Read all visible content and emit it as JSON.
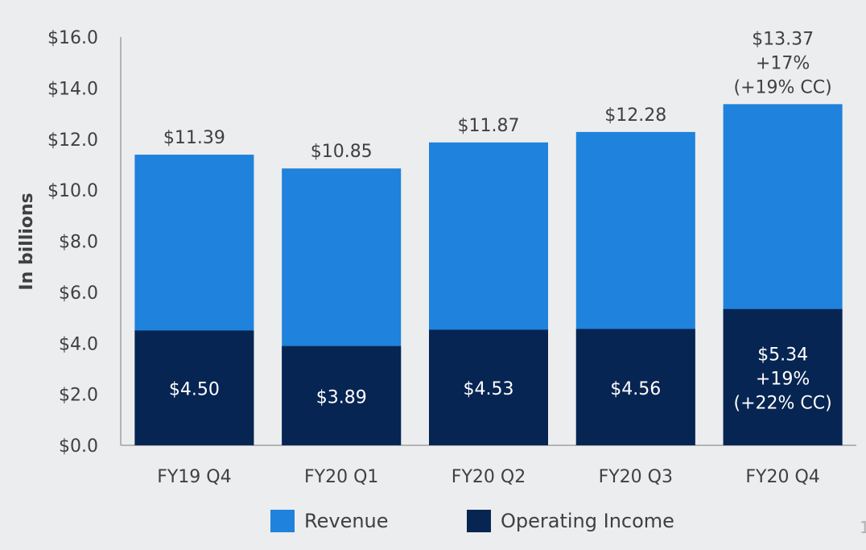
{
  "chart_data": {
    "type": "bar",
    "stacked": "overlay",
    "categories": [
      "FY19 Q4",
      "FY20 Q1",
      "FY20 Q2",
      "FY20 Q3",
      "FY20 Q4"
    ],
    "series": [
      {
        "name": "Revenue",
        "color": "#1f82dc",
        "values": [
          11.39,
          10.85,
          11.87,
          12.28,
          13.37
        ],
        "labels": [
          [
            "$11.39"
          ],
          [
            "$10.85"
          ],
          [
            "$11.87"
          ],
          [
            "$12.28"
          ],
          [
            "$13.37",
            "+17%",
            "(+19% CC)"
          ]
        ]
      },
      {
        "name": "Operating Income",
        "color": "#072552",
        "values": [
          4.5,
          3.89,
          4.53,
          4.56,
          5.34
        ],
        "labels": [
          [
            "$4.50"
          ],
          [
            "$3.89"
          ],
          [
            "$4.53"
          ],
          [
            "$4.56"
          ],
          [
            "$5.34",
            "+19%",
            "(+22% CC)"
          ]
        ]
      }
    ],
    "ylabel": "In billions",
    "ylim": [
      0,
      16
    ],
    "yticks": [
      "$0.0",
      "$2.0",
      "$4.0",
      "$6.0",
      "$8.0",
      "$10.0",
      "$12.0",
      "$14.0",
      "$16.0"
    ],
    "grid": false,
    "legend_position": "bottom",
    "legend": [
      "Revenue",
      "Operating Income"
    ]
  },
  "page_number": "1"
}
